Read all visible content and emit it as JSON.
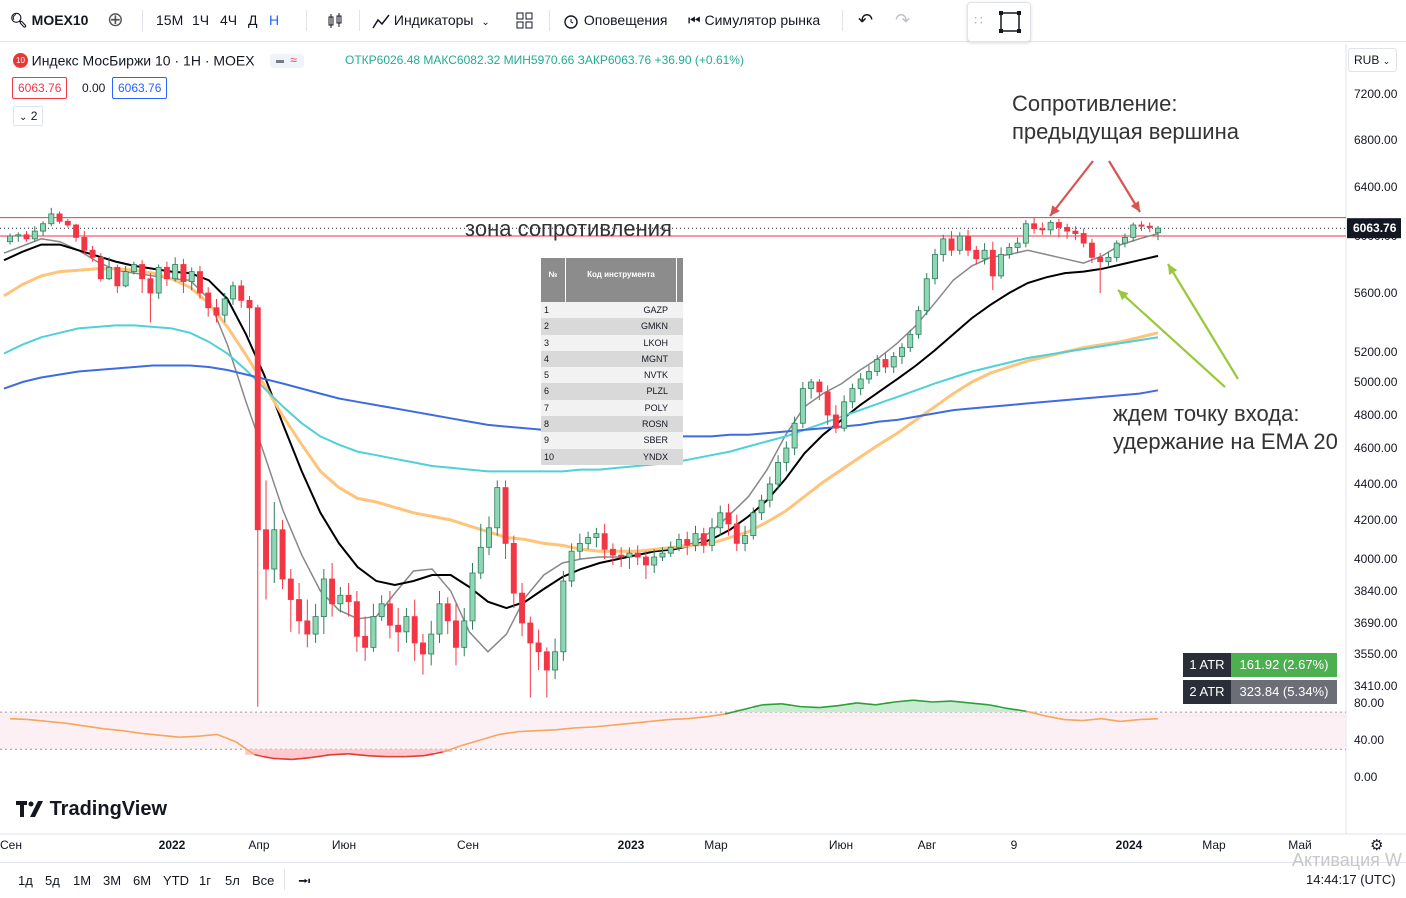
{
  "toolbar": {
    "symbol": "MOEX10",
    "intervals": [
      "15М",
      "1Ч",
      "4Ч",
      "Д",
      "Н"
    ],
    "active_interval": "Н",
    "indicators_label": "Индикаторы",
    "alerts_label": "Оповещения",
    "simulator_label": "Симулятор рынка"
  },
  "legend": {
    "badge": "10",
    "title": "Индекс МосБиржи 10 · 1Н · MOEX",
    "ohlc": "ОТКР6026.48 МАКС6082.32 МИН5970.66 ЗАКР6063.76 +36.90 (+0.61%)",
    "box1": "6063.76",
    "mid": "0.00",
    "box2": "6063.76",
    "collapse": "2"
  },
  "currency": "RUB",
  "last_price_label": "6063.76",
  "colors": {
    "up": "#22ab94",
    "down": "#f23645",
    "ema_gray": "#888888",
    "ema_black": "#000000",
    "ema_orange": "#ffc37a",
    "ema_cyan": "#50d0d8",
    "ema_blue": "#3e6ce0",
    "resistance": "#f23645",
    "arrow_red": "#d9534f",
    "arrow_green": "#9ac83c"
  },
  "annotations": {
    "resistance_title": "Сопротивление:",
    "resistance_sub": "предыдущая вершина",
    "zone": "зона сопротивления",
    "entry_title": "ждем точку входа:",
    "entry_sub": "удержание на EMA 20"
  },
  "table": {
    "headers": [
      "№",
      "Код инструмента"
    ],
    "rows": [
      [
        "1",
        "GAZP"
      ],
      [
        "2",
        "GMKN"
      ],
      [
        "3",
        "LKOH"
      ],
      [
        "4",
        "MGNT"
      ],
      [
        "5",
        "NVTK"
      ],
      [
        "6",
        "PLZL"
      ],
      [
        "7",
        "POLY"
      ],
      [
        "8",
        "ROSN"
      ],
      [
        "9",
        "SBER"
      ],
      [
        "10",
        "YNDX"
      ]
    ]
  },
  "atr": {
    "label1": "1 ATR",
    "value1": "161.92 (2.67%)",
    "label2": "2 ATR",
    "value2": "323.84 (5.34%)"
  },
  "chart_data": {
    "type": "candlestick",
    "timeframe": "1W",
    "x_axis_labels": [
      "Сен",
      "2022",
      "Апр",
      "Июн",
      "Сен",
      "2023",
      "Мар",
      "Июн",
      "Авг",
      "9",
      "2024",
      "Мар",
      "Май"
    ],
    "y_axis_labels": [
      "7200.00",
      "6800.00",
      "6400.00",
      "6000.00",
      "5600.00",
      "5200.00",
      "5000.00",
      "4800.00",
      "4600.00",
      "4400.00",
      "4200.00",
      "4000.00",
      "3840.00",
      "3690.00",
      "3550.00",
      "3410.00"
    ],
    "resistance_zone": [
      6000,
      6150
    ],
    "candles": [
      [
        5960,
        6000,
        5940,
        6020
      ],
      [
        6000,
        6010,
        5960,
        6030
      ],
      [
        6010,
        5980,
        5960,
        6040
      ],
      [
        5980,
        6040,
        5960,
        6080
      ],
      [
        6040,
        6100,
        6000,
        6120
      ],
      [
        6100,
        6180,
        6080,
        6230
      ],
      [
        6180,
        6120,
        6100,
        6200
      ],
      [
        6120,
        6090,
        6070,
        6140
      ],
      [
        6090,
        5990,
        5960,
        6100
      ],
      [
        5990,
        5900,
        5880,
        6040
      ],
      [
        5900,
        5850,
        5820,
        5930
      ],
      [
        5850,
        5700,
        5680,
        5880
      ],
      [
        5700,
        5780,
        5690,
        5850
      ],
      [
        5780,
        5650,
        5600,
        5800
      ],
      [
        5650,
        5750,
        5640,
        5790
      ],
      [
        5750,
        5800,
        5730,
        5820
      ],
      [
        5800,
        5700,
        5600,
        5830
      ],
      [
        5700,
        5600,
        5400,
        5740
      ],
      [
        5600,
        5780,
        5560,
        5800
      ],
      [
        5780,
        5700,
        5650,
        5820
      ],
      [
        5700,
        5800,
        5680,
        5850
      ],
      [
        5800,
        5680,
        5600,
        5840
      ],
      [
        5680,
        5750,
        5620,
        5780
      ],
      [
        5750,
        5600,
        5560,
        5790
      ],
      [
        5600,
        5500,
        5440,
        5640
      ],
      [
        5500,
        5450,
        5400,
        5560
      ],
      [
        5450,
        5560,
        5400,
        5600
      ],
      [
        5560,
        5650,
        5520,
        5680
      ],
      [
        5650,
        5550,
        5500,
        5690
      ],
      [
        5550,
        5500,
        5300,
        5580
      ],
      [
        5500,
        4150,
        3320,
        5520
      ],
      [
        4150,
        3950,
        3800,
        4420
      ],
      [
        3950,
        4150,
        3880,
        4300
      ],
      [
        4150,
        3900,
        3850,
        4200
      ],
      [
        3900,
        3800,
        3650,
        3950
      ],
      [
        3800,
        3700,
        3640,
        3880
      ],
      [
        3700,
        3640,
        3580,
        3800
      ],
      [
        3640,
        3720,
        3600,
        3780
      ],
      [
        3720,
        3900,
        3640,
        3950
      ],
      [
        3900,
        3780,
        3720,
        3980
      ],
      [
        3780,
        3820,
        3740,
        3860
      ],
      [
        3820,
        3790,
        3720,
        3880
      ],
      [
        3790,
        3630,
        3560,
        3840
      ],
      [
        3630,
        3580,
        3520,
        3720
      ],
      [
        3580,
        3720,
        3560,
        3780
      ],
      [
        3720,
        3780,
        3700,
        3820
      ],
      [
        3780,
        3680,
        3620,
        3840
      ],
      [
        3680,
        3650,
        3560,
        3760
      ],
      [
        3650,
        3720,
        3600,
        3760
      ],
      [
        3720,
        3600,
        3520,
        3800
      ],
      [
        3600,
        3550,
        3460,
        3640
      ],
      [
        3550,
        3640,
        3500,
        3700
      ],
      [
        3640,
        3780,
        3600,
        3840
      ],
      [
        3780,
        3700,
        3640,
        3810
      ],
      [
        3700,
        3580,
        3500,
        3780
      ],
      [
        3580,
        3700,
        3540,
        3760
      ],
      [
        3700,
        3930,
        3660,
        3980
      ],
      [
        3930,
        4060,
        3900,
        4180
      ],
      [
        4060,
        4160,
        4020,
        4220
      ],
      [
        4160,
        4380,
        4120,
        4420
      ],
      [
        4380,
        4080,
        4000,
        4420
      ],
      [
        4080,
        3830,
        3760,
        4120
      ],
      [
        3830,
        3690,
        3630,
        3880
      ],
      [
        3690,
        3600,
        3360,
        3720
      ],
      [
        3600,
        3560,
        3480,
        3660
      ],
      [
        3560,
        3480,
        3360,
        3580
      ],
      [
        3480,
        3560,
        3440,
        3620
      ],
      [
        3560,
        3890,
        3520,
        3940
      ],
      [
        3890,
        4040,
        3860,
        4080
      ],
      [
        4040,
        4080,
        4000,
        4130
      ],
      [
        4080,
        4110,
        4050,
        4140
      ],
      [
        4110,
        4130,
        4060,
        4160
      ],
      [
        4130,
        4050,
        4000,
        4180
      ],
      [
        4050,
        4020,
        3970,
        4080
      ],
      [
        4020,
        4010,
        3960,
        4060
      ],
      [
        4010,
        4030,
        3950,
        4060
      ],
      [
        4030,
        4010,
        3970,
        4070
      ],
      [
        4010,
        3970,
        3900,
        4040
      ],
      [
        3970,
        4010,
        3930,
        4050
      ],
      [
        4010,
        4030,
        3990,
        4060
      ],
      [
        4030,
        4060,
        4010,
        4090
      ],
      [
        4060,
        4100,
        4040,
        4130
      ],
      [
        4100,
        4070,
        4020,
        4140
      ],
      [
        4070,
        4130,
        4040,
        4170
      ],
      [
        4130,
        4070,
        4030,
        4160
      ],
      [
        4070,
        4160,
        4040,
        4210
      ],
      [
        4160,
        4240,
        4120,
        4280
      ],
      [
        4240,
        4180,
        4120,
        4290
      ],
      [
        4180,
        4080,
        4040,
        4230
      ],
      [
        4080,
        4120,
        4040,
        4170
      ],
      [
        4120,
        4240,
        4100,
        4270
      ],
      [
        4240,
        4310,
        4200,
        4340
      ],
      [
        4310,
        4400,
        4270,
        4440
      ],
      [
        4400,
        4520,
        4370,
        4560
      ],
      [
        4520,
        4600,
        4470,
        4640
      ],
      [
        4600,
        4750,
        4560,
        4790
      ],
      [
        4750,
        4960,
        4720,
        5000
      ],
      [
        4960,
        5000,
        4900,
        5020
      ],
      [
        5000,
        4940,
        4890,
        5020
      ],
      [
        4940,
        4800,
        4740,
        4980
      ],
      [
        4800,
        4720,
        4690,
        4860
      ],
      [
        4720,
        4880,
        4700,
        4920
      ],
      [
        4880,
        4960,
        4840,
        4990
      ],
      [
        4960,
        5020,
        4920,
        5060
      ],
      [
        5020,
        5070,
        4990,
        5110
      ],
      [
        5070,
        5150,
        5040,
        5180
      ],
      [
        5150,
        5100,
        5060,
        5190
      ],
      [
        5100,
        5170,
        5060,
        5200
      ],
      [
        5170,
        5230,
        5120,
        5260
      ],
      [
        5230,
        5320,
        5200,
        5350
      ],
      [
        5320,
        5480,
        5290,
        5510
      ],
      [
        5480,
        5700,
        5450,
        5740
      ],
      [
        5700,
        5870,
        5660,
        5910
      ],
      [
        5870,
        5980,
        5820,
        6010
      ],
      [
        5980,
        5900,
        5860,
        6040
      ],
      [
        5900,
        6000,
        5870,
        6030
      ],
      [
        6000,
        5900,
        5860,
        6050
      ],
      [
        5900,
        5840,
        5800,
        5930
      ],
      [
        5840,
        5900,
        5800,
        5950
      ],
      [
        5900,
        5720,
        5620,
        5960
      ],
      [
        5720,
        5870,
        5700,
        5920
      ],
      [
        5870,
        5920,
        5840,
        5950
      ],
      [
        5920,
        5950,
        5880,
        5990
      ],
      [
        5950,
        6100,
        5920,
        6130
      ],
      [
        6100,
        6060,
        6020,
        6150
      ],
      [
        6060,
        6050,
        6010,
        6110
      ],
      [
        6050,
        6110,
        6010,
        6130
      ],
      [
        6110,
        6070,
        5990,
        6140
      ],
      [
        6070,
        6040,
        5980,
        6100
      ],
      [
        6040,
        6020,
        5970,
        6080
      ],
      [
        6020,
        5950,
        5920,
        6060
      ],
      [
        5950,
        5850,
        5810,
        5980
      ],
      [
        5850,
        5820,
        5600,
        5880
      ],
      [
        5820,
        5850,
        5790,
        5890
      ],
      [
        5850,
        5950,
        5820,
        5970
      ],
      [
        5950,
        5990,
        5920,
        6020
      ],
      [
        5990,
        6090,
        5960,
        6110
      ],
      [
        6090,
        6080,
        6040,
        6120
      ],
      [
        6080,
        6070,
        6030,
        6110
      ],
      [
        6026.48,
        6063.76,
        5970.66,
        6082.32
      ]
    ],
    "ema_series": [
      {
        "values": [
          5880,
          5930,
          5980,
          5960,
          5900,
          5820,
          5760,
          5740,
          5720,
          5700,
          5690,
          5560,
          5250,
          4880,
          4560,
          4250,
          4020,
          3840,
          3750,
          3710,
          3720,
          3830,
          3940,
          3950,
          3840,
          3650,
          3560,
          3640,
          3810,
          3920,
          3980,
          4000,
          4010,
          4010,
          4020,
          4040,
          4060,
          4080,
          4140,
          4230,
          4330,
          4480,
          4680,
          4850,
          4930,
          4990,
          5080,
          5160,
          5260,
          5380,
          5530,
          5690,
          5790,
          5850,
          5870,
          5900,
          5870,
          5840,
          5810,
          5860,
          5940,
          5980,
          6020
        ]
      },
      {
        "values": [
          5830,
          5890,
          5940,
          5940,
          5900,
          5860,
          5820,
          5790,
          5770,
          5750,
          5740,
          5690,
          5560,
          5320,
          5040,
          4740,
          4470,
          4240,
          4080,
          3960,
          3890,
          3870,
          3890,
          3920,
          3920,
          3860,
          3790,
          3760,
          3790,
          3850,
          3910,
          3950,
          3980,
          4000,
          4020,
          4040,
          4050,
          4070,
          4100,
          4150,
          4220,
          4310,
          4430,
          4570,
          4680,
          4770,
          4860,
          4940,
          5020,
          5110,
          5210,
          5320,
          5430,
          5520,
          5600,
          5670,
          5710,
          5740,
          5750,
          5770,
          5800,
          5830,
          5860
        ]
      },
      {
        "values": [
          5580,
          5660,
          5720,
          5750,
          5760,
          5770,
          5770,
          5760,
          5740,
          5700,
          5640,
          5530,
          5370,
          5180,
          4980,
          4790,
          4620,
          4470,
          4380,
          4320,
          4300,
          4270,
          4240,
          4220,
          4200,
          4170,
          4140,
          4110,
          4100,
          4080,
          4070,
          4050,
          4040,
          4040,
          4040,
          4050,
          4060,
          4070,
          4080,
          4110,
          4140,
          4190,
          4250,
          4330,
          4410,
          4480,
          4550,
          4620,
          4690,
          4770,
          4850,
          4930,
          5000,
          5060,
          5100,
          5140,
          5170,
          5200,
          5230,
          5250,
          5270,
          5300,
          5330
        ]
      },
      {
        "values": [
          5190,
          5250,
          5300,
          5330,
          5360,
          5370,
          5380,
          5380,
          5370,
          5360,
          5330,
          5270,
          5190,
          5080,
          4960,
          4850,
          4750,
          4670,
          4620,
          4580,
          4560,
          4540,
          4520,
          4500,
          4490,
          4480,
          4470,
          4470,
          4470,
          4470,
          4470,
          4480,
          4480,
          4490,
          4500,
          4510,
          4520,
          4540,
          4560,
          4580,
          4610,
          4640,
          4670,
          4710,
          4750,
          4790,
          4830,
          4870,
          4910,
          4950,
          4990,
          5030,
          5070,
          5100,
          5130,
          5160,
          5180,
          5200,
          5220,
          5240,
          5260,
          5280,
          5300
        ]
      },
      {
        "values": [
          4960,
          5000,
          5030,
          5050,
          5070,
          5080,
          5090,
          5100,
          5110,
          5110,
          5110,
          5100,
          5080,
          5050,
          5020,
          4990,
          4960,
          4930,
          4900,
          4880,
          4860,
          4840,
          4820,
          4800,
          4780,
          4760,
          4740,
          4730,
          4720,
          4710,
          4700,
          4690,
          4680,
          4670,
          4670,
          4670,
          4670,
          4670,
          4670,
          4680,
          4680,
          4690,
          4700,
          4710,
          4720,
          4730,
          4740,
          4760,
          4770,
          4790,
          4810,
          4830,
          4840,
          4850,
          4860,
          4870,
          4880,
          4890,
          4900,
          4910,
          4920,
          4930,
          4950
        ]
      }
    ],
    "oscillator": {
      "y_labels": [
        "80.00",
        "40.00",
        "0.00"
      ],
      "upper": 70,
      "lower": 30,
      "values": [
        63,
        62,
        60,
        58,
        55,
        52,
        50,
        47,
        45,
        43,
        44,
        46,
        38,
        24,
        20,
        19,
        21,
        24,
        25,
        23,
        22,
        22,
        23,
        27,
        34,
        40,
        46,
        49,
        50,
        51,
        53,
        54,
        56,
        58,
        60,
        62,
        63,
        65,
        68,
        73,
        78,
        79,
        76,
        75,
        77,
        80,
        78,
        81,
        83,
        81,
        82,
        80,
        78,
        74,
        71,
        66,
        62,
        61,
        63,
        60,
        62,
        63
      ]
    }
  }
}
